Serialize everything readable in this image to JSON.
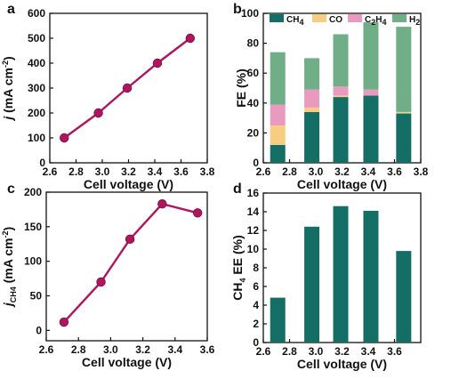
{
  "chart_data": [
    {
      "panel_label": "a",
      "type": "line",
      "xlabel": "Cell voltage (V)",
      "ylabel": [
        "j",
        " (mA cm",
        "-2",
        ")"
      ],
      "xlim": [
        2.6,
        3.8
      ],
      "ylim": [
        0,
        600
      ],
      "xticks": [
        "2.6",
        "2.8",
        "3.0",
        "3.2",
        "3.4",
        "3.6",
        "3.8"
      ],
      "yticks": [
        "0",
        "100",
        "200",
        "300",
        "400",
        "500",
        "600"
      ],
      "grid": false,
      "color": "#B0155F",
      "x": [
        2.71,
        2.97,
        3.19,
        3.42,
        3.67
      ],
      "y": [
        100,
        200,
        300,
        400,
        500
      ]
    },
    {
      "panel_label": "b",
      "type": "bar",
      "stacked": true,
      "xlabel": "Cell voltage (V)",
      "ylabel": "FE (%)",
      "xlim": [
        2.6,
        3.8
      ],
      "ylim": [
        0,
        100
      ],
      "xticks": [
        "2.6",
        "2.8",
        "3.0",
        "3.2",
        "3.4",
        "3.6",
        "3.8"
      ],
      "yticks": [
        "0",
        "20",
        "40",
        "60",
        "80",
        "100"
      ],
      "grid": false,
      "legend_position": "top",
      "legend": [
        [
          "CH",
          "4",
          ""
        ],
        [
          "CO",
          "",
          ""
        ],
        [
          "C",
          "2",
          "H",
          "4"
        ],
        [
          "H",
          "2",
          ""
        ]
      ],
      "x": [
        2.71,
        2.97,
        3.19,
        3.42,
        3.67
      ],
      "series": [
        {
          "color": "#156E66",
          "values": [
            12,
            34,
            44,
            45,
            33
          ]
        },
        {
          "color": "#F7CD82",
          "values": [
            13,
            3,
            1,
            0,
            1
          ]
        },
        {
          "color": "#E89BBE",
          "values": [
            14,
            12,
            6,
            4,
            0
          ]
        },
        {
          "color": "#6FAE87",
          "values": [
            35,
            21,
            35,
            45,
            57
          ]
        }
      ]
    },
    {
      "panel_label": "c",
      "type": "line",
      "xlabel": "Cell voltage (V)",
      "ylabel": [
        "j",
        "CH4",
        " (mA cm",
        "-2",
        ")"
      ],
      "xlim": [
        2.6,
        3.6
      ],
      "ylim": [
        -15,
        200
      ],
      "xticks": [
        "2.6",
        "2.8",
        "3.0",
        "3.2",
        "3.4",
        "3.6"
      ],
      "yticks": [
        "0",
        "50",
        "100",
        "150",
        "200"
      ],
      "grid": false,
      "color": "#B0155F",
      "x": [
        2.71,
        2.94,
        3.12,
        3.32,
        3.54
      ],
      "y": [
        12,
        70,
        132,
        183,
        170
      ]
    },
    {
      "panel_label": "d",
      "type": "bar",
      "xlabel": "Cell voltage (V)",
      "ylabel": [
        "CH",
        "4",
        " EE (%)"
      ],
      "xlim": [
        2.6,
        3.8
      ],
      "ylim": [
        0,
        16
      ],
      "xticks": [
        "2.6",
        "2.8",
        "3.0",
        "3.2",
        "3.4",
        "3.6"
      ],
      "yticks": [
        "0",
        "2",
        "4",
        "6",
        "8",
        "10",
        "12",
        "14",
        "16"
      ],
      "grid": false,
      "color": "#156E66",
      "x": [
        2.71,
        2.97,
        3.19,
        3.42,
        3.67
      ],
      "values": [
        4.8,
        12.4,
        14.6,
        14.1,
        9.8
      ]
    }
  ]
}
